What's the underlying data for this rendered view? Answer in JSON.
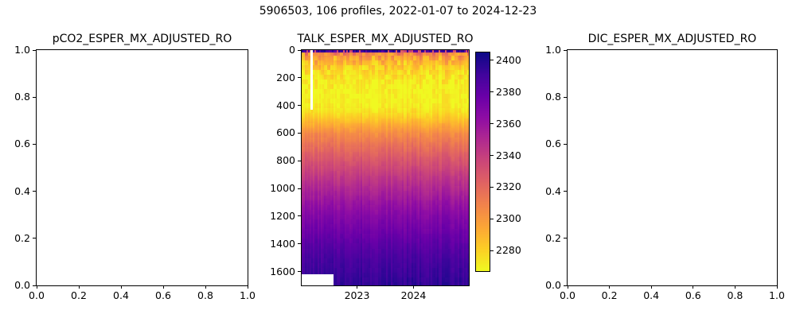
{
  "suptitle": "5906503, 106 profiles, 2022-01-07 to 2024-12-23",
  "panels": [
    {
      "title": "pCO2_ESPER_MX_ADJUSTED_RO",
      "empty": true,
      "xlim": [
        0,
        1
      ],
      "ylim": [
        0,
        1
      ],
      "xtick_values": [
        0,
        0.2,
        0.4,
        0.6,
        0.8,
        1
      ],
      "xtick_labels": [
        "0.0",
        "0.2",
        "0.4",
        "0.6",
        "0.8",
        "1.0"
      ],
      "ytick_values": [
        0,
        0.2,
        0.4,
        0.6,
        0.8,
        1
      ],
      "ytick_labels": [
        "0.0",
        "0.2",
        "0.4",
        "0.6",
        "0.8",
        "1.0"
      ]
    },
    {
      "title": "TALK_ESPER_MX_ADJUSTED_RO",
      "empty": false,
      "xtick_values": [
        2023,
        2024
      ],
      "xtick_labels": [
        "2023",
        "2024"
      ],
      "ytick_values": [
        0,
        200,
        400,
        600,
        800,
        1000,
        1200,
        1400,
        1600
      ],
      "ytick_labels": [
        "0",
        "200",
        "400",
        "600",
        "800",
        "1000",
        "1200",
        "1400",
        "1600"
      ]
    },
    {
      "title": "DIC_ESPER_MX_ADJUSTED_RO",
      "empty": true,
      "xlim": [
        0,
        1
      ],
      "ylim": [
        0,
        1
      ],
      "xtick_values": [
        0,
        0.2,
        0.4,
        0.6,
        0.8,
        1
      ],
      "xtick_labels": [
        "0.0",
        "0.2",
        "0.4",
        "0.6",
        "0.8",
        "1.0"
      ],
      "ytick_values": [
        0,
        0.2,
        0.4,
        0.6,
        0.8,
        1
      ],
      "ytick_labels": [
        "0.0",
        "0.2",
        "0.4",
        "0.6",
        "0.8",
        "1.0"
      ]
    }
  ],
  "chart_data": {
    "type": "heatmap",
    "title": "TALK_ESPER_MX_ADJUSTED_RO",
    "platform_id": "5906503",
    "n_profiles": 106,
    "date_start": "2022-01-07",
    "date_end": "2024-12-23",
    "x_time_range": [
      2022.02,
      2024.98
    ],
    "xticks": [
      2023,
      2024
    ],
    "depth_range_m": [
      0,
      1700
    ],
    "depth_ticks": [
      0,
      200,
      400,
      600,
      800,
      1000,
      1200,
      1400,
      1600
    ],
    "colorbar_ticks": [
      2280,
      2300,
      2320,
      2340,
      2360,
      2380,
      2400
    ],
    "vmin": 2267,
    "vmax": 2405,
    "colormap": "plasma_r",
    "colormap_anchors": [
      "#f0f921",
      "#fcce25",
      "#fca636",
      "#f2844b",
      "#e16462",
      "#cc4778",
      "#b12a90",
      "#8f0da4",
      "#6a00a8",
      "#41049d",
      "#0d0887"
    ],
    "mean_profile": [
      [
        0,
        2388
      ],
      [
        12,
        2312
      ],
      [
        50,
        2296
      ],
      [
        100,
        2286
      ],
      [
        150,
        2278
      ],
      [
        200,
        2272
      ],
      [
        300,
        2269
      ],
      [
        400,
        2270
      ],
      [
        450,
        2276
      ],
      [
        500,
        2285
      ],
      [
        600,
        2305
      ],
      [
        700,
        2318
      ],
      [
        800,
        2330
      ],
      [
        900,
        2341
      ],
      [
        1000,
        2351
      ],
      [
        1100,
        2360
      ],
      [
        1200,
        2368
      ],
      [
        1300,
        2375
      ],
      [
        1400,
        2382
      ],
      [
        1500,
        2388
      ],
      [
        1600,
        2392
      ],
      [
        1700,
        2396
      ]
    ],
    "surface_layer": {
      "depth_m": 12,
      "dark_value": 2390,
      "light_value": 2332,
      "light_fraction": 0.25
    },
    "noise": {
      "upper_amplitude": 16,
      "decay_depth_m": 200,
      "column_stripe_amplitude": 4
    },
    "missing_data": [
      {
        "desc": "early deep gap",
        "time_frac": [
          0,
          0.19
        ],
        "depth_m": [
          1620,
          1700
        ]
      },
      {
        "desc": "early shallow stripe",
        "time_frac": [
          0.052,
          0.066
        ],
        "depth_m": [
          0,
          430
        ]
      }
    ]
  }
}
